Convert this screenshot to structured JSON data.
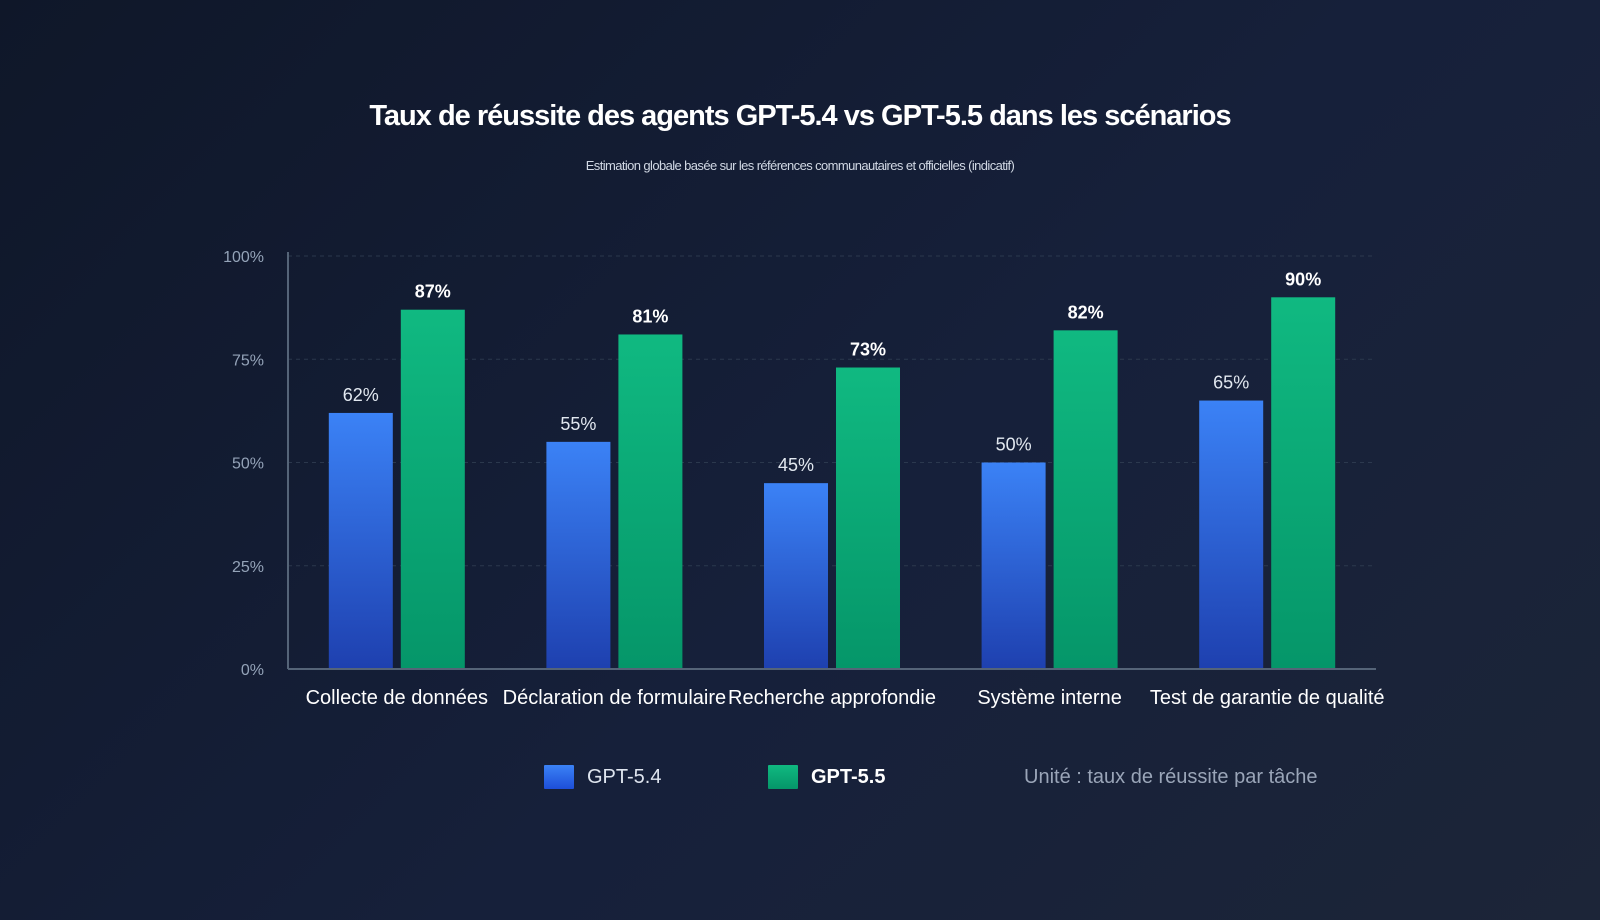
{
  "chart_data": {
    "type": "bar",
    "title": "Taux de réussite des agents GPT-5.4 vs GPT-5.5 dans les scénarios",
    "subtitle": "Estimation globale basée sur les références communautaires et officielles (indicatif)",
    "categories": [
      "Collecte de données",
      "Déclaration de formulaire",
      "Recherche approfondie",
      "Système interne",
      "Test de garantie de qualité"
    ],
    "series": [
      {
        "name": "GPT-5.4",
        "values": [
          62,
          55,
          45,
          50,
          65
        ],
        "labels": [
          "62%",
          "55%",
          "45%",
          "50%",
          "65%"
        ],
        "color_top": "#3b82f6",
        "color_bottom": "#1e40af"
      },
      {
        "name": "GPT-5.5",
        "values": [
          87,
          81,
          73,
          82,
          90
        ],
        "labels": [
          "87%",
          "81%",
          "73%",
          "82%",
          "90%"
        ],
        "color_top": "#10b981",
        "color_bottom": "#059669"
      }
    ],
    "ylim": [
      0,
      100
    ],
    "yticks": [
      0,
      25,
      50,
      75,
      100
    ],
    "ytick_labels": [
      "0%",
      "25%",
      "50%",
      "75%",
      "100%"
    ],
    "grid": true,
    "legend_position": "bottom",
    "unit_note": "Unité : taux de réussite par tâche"
  }
}
